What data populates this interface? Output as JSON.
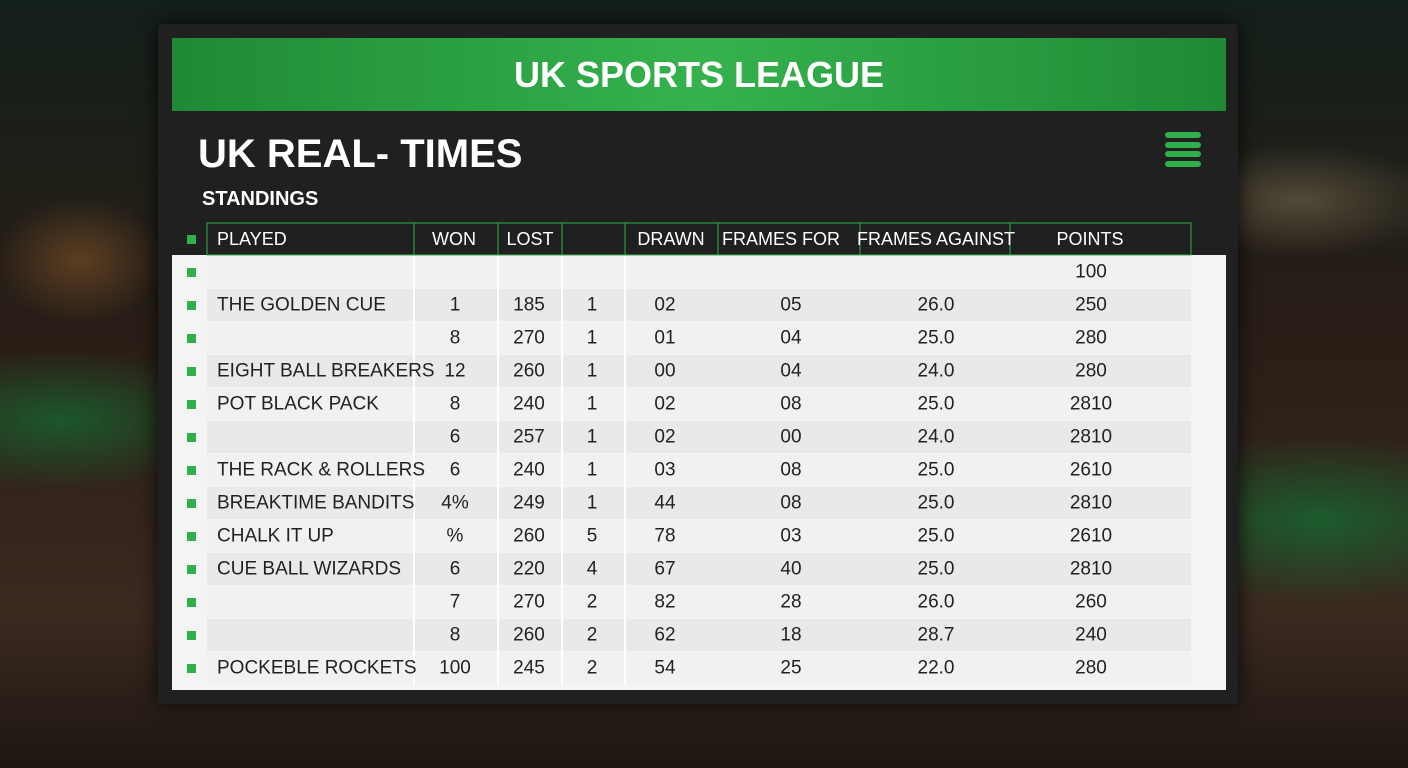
{
  "header": {
    "title": "UK SPORTS LEAGUE",
    "subtitle": "UK REAL- TIMES",
    "section": "STANDINGS"
  },
  "table": {
    "columns": [
      "PLAYED",
      "WON",
      "LOST",
      null,
      "DRAWN",
      "FRAMES FOR",
      "FRAMES AGAINST",
      "POINTS"
    ],
    "rows": [
      [
        null,
        null,
        null,
        null,
        null,
        null,
        null,
        "100"
      ],
      [
        "THE GOLDEN CUE",
        "1",
        "185",
        "1",
        "02",
        "05",
        "26.0",
        "250"
      ],
      [
        null,
        "8",
        "270",
        "1",
        "01",
        "04",
        "25.0",
        "280"
      ],
      [
        "EIGHT BALL BREAKERS",
        "12",
        "260",
        "1",
        "00",
        "04",
        "24.0",
        "280"
      ],
      [
        "POT BLACK PACK",
        "8",
        "240",
        "1",
        "02",
        "08",
        "25.0",
        "2810"
      ],
      [
        null,
        "6",
        "257",
        "1",
        "02",
        "00",
        "24.0",
        "2810"
      ],
      [
        "THE RACK & ROLLERS",
        "6",
        "240",
        "1",
        "03",
        "08",
        "25.0",
        "2610"
      ],
      [
        "BREAKTIME BANDITS",
        "4%",
        "249",
        "1",
        "44",
        "08",
        "25.0",
        "2810"
      ],
      [
        "CHALK IT UP",
        "%",
        "260",
        "5",
        "78",
        "03",
        "25.0",
        "2610"
      ],
      [
        "CUE BALL WIZARDS",
        "6",
        "220",
        "4",
        "67",
        "40",
        "25.0",
        "2810"
      ],
      [
        null,
        "7",
        "270",
        "2",
        "82",
        "28",
        "26.0",
        "260"
      ],
      [
        null,
        "8",
        "260",
        "2",
        "62",
        "18",
        "28.7",
        "240"
      ],
      [
        "POCKEBLE ROCKETS",
        "100",
        "245",
        "2",
        "54",
        "25",
        "22.0",
        "280"
      ]
    ]
  }
}
